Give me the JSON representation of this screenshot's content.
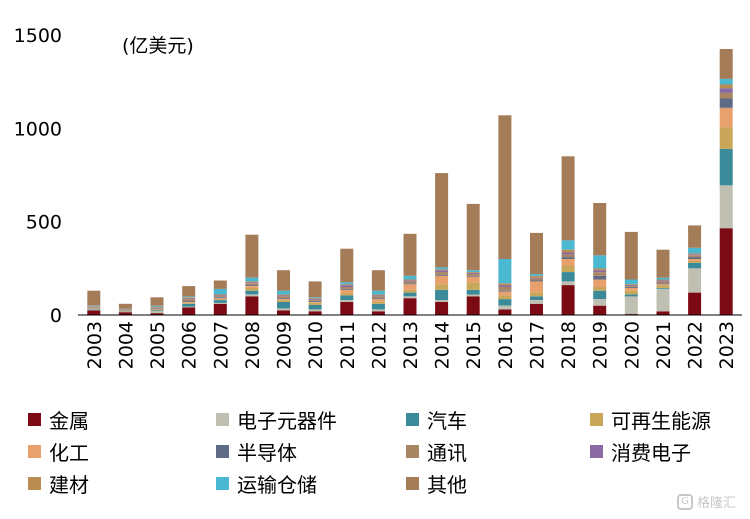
{
  "chart_data": {
    "type": "bar",
    "stacked": true,
    "title": "",
    "unit_label": "(亿美元)",
    "xlabel": "",
    "ylabel": "",
    "ylim": [
      0,
      1500
    ],
    "yticks": [
      0,
      500,
      1000,
      1500
    ],
    "grid": false,
    "legend_position": "bottom",
    "categories": [
      "2003",
      "2004",
      "2005",
      "2006",
      "2007",
      "2008",
      "2009",
      "2010",
      "2011",
      "2012",
      "2013",
      "2014",
      "2015",
      "2016",
      "2017",
      "2018",
      "2019",
      "2020",
      "2021",
      "2022",
      "2023"
    ],
    "series": [
      {
        "name": "金属",
        "color": "#7b0a14",
        "values": [
          25,
          15,
          10,
          40,
          60,
          100,
          25,
          20,
          70,
          20,
          90,
          70,
          100,
          30,
          60,
          160,
          50,
          5,
          20,
          120,
          465
        ]
      },
      {
        "name": "电子元器件",
        "color": "#bfc0b1",
        "values": [
          5,
          3,
          10,
          5,
          5,
          10,
          10,
          10,
          10,
          10,
          10,
          10,
          10,
          20,
          20,
          20,
          35,
          95,
          120,
          130,
          230
        ]
      },
      {
        "name": "汽车",
        "color": "#3a8a9a",
        "values": [
          3,
          2,
          5,
          15,
          15,
          20,
          35,
          25,
          25,
          30,
          20,
          55,
          25,
          35,
          20,
          50,
          45,
          10,
          5,
          30,
          195
        ]
      },
      {
        "name": "可再生能源",
        "color": "#c9a75a",
        "values": [
          2,
          2,
          3,
          5,
          5,
          15,
          10,
          10,
          10,
          10,
          15,
          30,
          40,
          20,
          20,
          35,
          20,
          20,
          15,
          10,
          115
        ]
      },
      {
        "name": "化工",
        "color": "#e8a06d",
        "values": [
          2,
          2,
          3,
          5,
          5,
          10,
          5,
          5,
          20,
          15,
          30,
          45,
          30,
          20,
          60,
          35,
          40,
          15,
          5,
          10,
          105
        ]
      },
      {
        "name": "半导体",
        "color": "#5f6a87",
        "values": [
          2,
          2,
          3,
          5,
          5,
          5,
          5,
          5,
          5,
          5,
          5,
          5,
          5,
          5,
          5,
          10,
          20,
          5,
          5,
          10,
          50
        ]
      },
      {
        "name": "通讯",
        "color": "#a88563",
        "values": [
          3,
          2,
          5,
          10,
          5,
          10,
          10,
          5,
          10,
          10,
          10,
          15,
          10,
          20,
          10,
          15,
          20,
          5,
          10,
          10,
          30
        ]
      },
      {
        "name": "消费电子",
        "color": "#8a6aa3",
        "values": [
          2,
          2,
          3,
          5,
          5,
          5,
          5,
          5,
          10,
          5,
          5,
          10,
          5,
          10,
          5,
          10,
          10,
          5,
          5,
          5,
          25
        ]
      },
      {
        "name": "建材",
        "color": "#b98c52",
        "values": [
          3,
          2,
          3,
          5,
          5,
          5,
          5,
          5,
          5,
          5,
          5,
          5,
          5,
          10,
          10,
          15,
          10,
          5,
          5,
          5,
          20
        ]
      },
      {
        "name": "运输仓储",
        "color": "#4bb8d2",
        "values": [
          3,
          2,
          5,
          5,
          30,
          20,
          20,
          5,
          10,
          20,
          20,
          10,
          10,
          130,
          10,
          50,
          70,
          25,
          10,
          30,
          30
        ]
      },
      {
        "name": "其他",
        "color": "#a57c58",
        "values": [
          80,
          26,
          45,
          55,
          45,
          230,
          110,
          85,
          180,
          110,
          225,
          505,
          355,
          770,
          220,
          450,
          280,
          255,
          150,
          120,
          160
        ]
      }
    ]
  },
  "watermark": {
    "text": "格隆汇"
  }
}
